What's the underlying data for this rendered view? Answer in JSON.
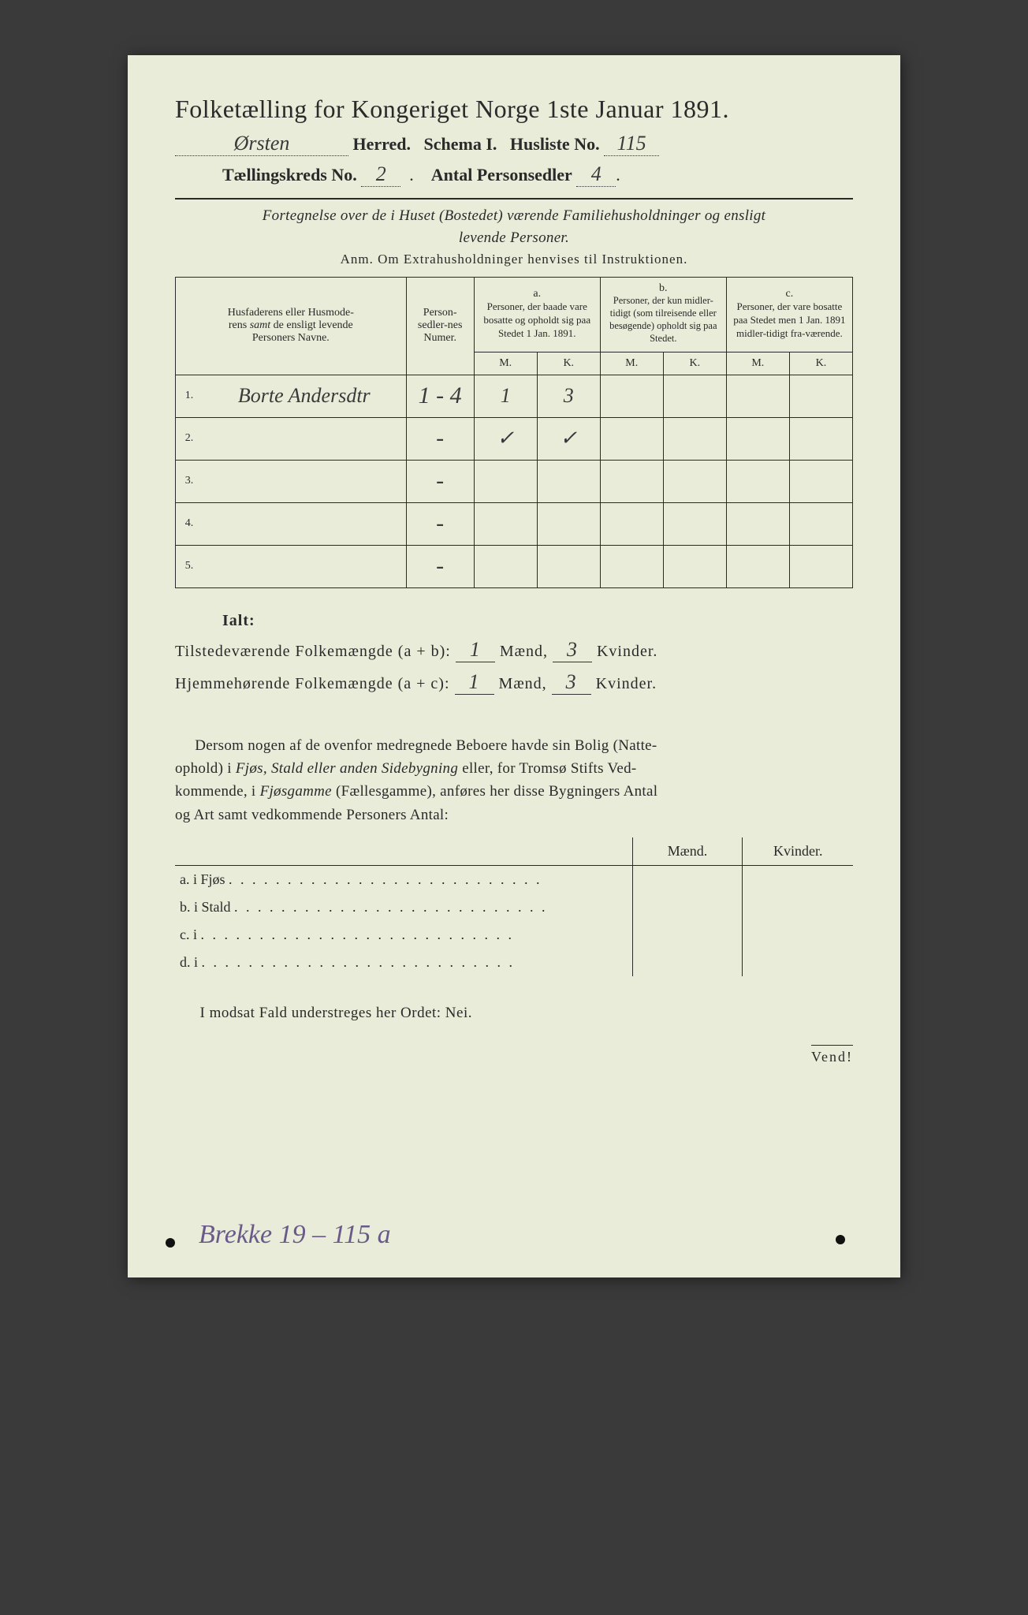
{
  "title": "Folketælling for Kongeriget Norge 1ste Januar 1891.",
  "header": {
    "herred_value": "Ørsten",
    "herred_label": "Herred.",
    "schema_label": "Schema I.",
    "husliste_label": "Husliste No.",
    "husliste_value": "115",
    "kreds_label": "Tællingskreds No.",
    "kreds_value": "2",
    "personsedler_label": "Antal Personsedler",
    "personsedler_value": "4"
  },
  "subhead_line1": "Fortegnelse over de i Huset (Bostedet) værende Familiehusholdninger og ensligt",
  "subhead_line2": "levende Personer.",
  "anm": "Anm.  Om Extrahusholdninger henvises til Instruktionen.",
  "table": {
    "col_name": "Husfaderens eller Husmoderens samt de ensligt levende Personers Navne.",
    "col_num": "Person-sedler-nes Numer.",
    "col_a_top": "a.",
    "col_a": "Personer, der baade vare bosatte og opholdt sig paa Stedet 1 Jan. 1891.",
    "col_b_top": "b.",
    "col_b": "Personer, der kun midler-tidigt (som tilreisende eller besøgende) opholdt sig paa Stedet.",
    "col_c_top": "c.",
    "col_c": "Personer, der vare bosatte paa Stedet men 1 Jan. 1891 midler-tidigt fra-værende.",
    "mk_m": "M.",
    "mk_k": "K.",
    "rows": [
      {
        "n": "1.",
        "name": "Borte Andersdtr",
        "num": "1 - 4",
        "am": "1",
        "ak": "3",
        "bm": "",
        "bk": "",
        "cm": "",
        "ck": ""
      },
      {
        "n": "2.",
        "name": "",
        "num": "-",
        "am": "✓",
        "ak": "✓",
        "bm": "",
        "bk": "",
        "cm": "",
        "ck": ""
      },
      {
        "n": "3.",
        "name": "",
        "num": "-",
        "am": "",
        "ak": "",
        "bm": "",
        "bk": "",
        "cm": "",
        "ck": ""
      },
      {
        "n": "4.",
        "name": "",
        "num": "-",
        "am": "",
        "ak": "",
        "bm": "",
        "bk": "",
        "cm": "",
        "ck": ""
      },
      {
        "n": "5.",
        "name": "",
        "num": "-",
        "am": "",
        "ak": "",
        "bm": "",
        "bk": "",
        "cm": "",
        "ck": ""
      }
    ]
  },
  "ialt": {
    "heading": "Ialt:",
    "line1_pre": "Tilstedeværende Folkemængde (a + b):",
    "line2_pre": "Hjemmehørende Folkemængde (a + c):",
    "maend": "Mænd,",
    "kvinder": "Kvinder.",
    "v1m": "1",
    "v1k": "3",
    "v2m": "1",
    "v2k": "3"
  },
  "para": "Dersom nogen af de ovenfor medregnede Beboere havde sin Bolig (Natteophold) i Fjøs, Stald eller anden Sidebygning eller, for Tromsø Stifts Vedkommende, i Fjøsgamme (Fællesgamme), anføres her disse Bygningers Antal og Art samt vedkommende Personers Antal:",
  "mk_table": {
    "maend": "Mænd.",
    "kvinder": "Kvinder.",
    "rows": [
      {
        "l": "a.  i     Fjøs"
      },
      {
        "l": "b.  i     Stald"
      },
      {
        "l": "c.  i"
      },
      {
        "l": "d.  i"
      }
    ]
  },
  "nei": "I modsat Fald understreges her Ordet: Nei.",
  "vend": "Vend!",
  "bottom_hand": "Brekke 19 – 115 a",
  "colors": {
    "paper": "#e8ecd8",
    "ink": "#2a2a2a",
    "hand_purple": "#6a5a8a"
  }
}
